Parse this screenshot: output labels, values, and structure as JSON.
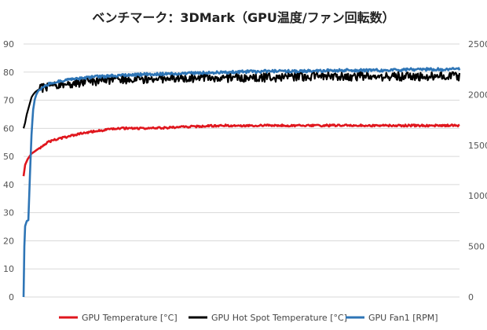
{
  "chart_data": {
    "type": "line",
    "title": "ベンチマーク：3DMark（GPU温度/ファン回転数）",
    "left_axis": {
      "ylim": [
        0,
        90
      ],
      "ticks": [
        "0",
        "10",
        "20",
        "30",
        "40",
        "50",
        "60",
        "70",
        "80",
        "90"
      ]
    },
    "right_axis": {
      "ylim": [
        0,
        2500
      ],
      "ticks": [
        "0",
        "500",
        "1000",
        "1500",
        "2000",
        "2500"
      ]
    },
    "grid": true,
    "legend_position": "bottom",
    "series": [
      {
        "name": "GPU Temperature [°C]",
        "axis": "left",
        "color": "#e0161d",
        "x": [
          0,
          2,
          5,
          10,
          20,
          30,
          40,
          55,
          70,
          90,
          120,
          160,
          200,
          250,
          300,
          350,
          400,
          450,
          500,
          548
        ],
        "y": [
          43,
          47,
          49,
          51,
          53,
          55,
          56,
          57,
          58,
          59,
          60,
          60,
          60.5,
          61,
          61,
          61,
          61,
          61,
          61,
          61
        ]
      },
      {
        "name": "GPU Hot Spot Temperature [°C]",
        "axis": "left",
        "color": "#000000",
        "x": [
          0,
          2,
          4,
          6,
          8,
          10,
          12,
          15,
          20,
          30,
          40,
          60,
          80,
          100,
          150,
          200,
          250,
          300,
          350,
          400,
          450,
          500,
          548
        ],
        "y": [
          60,
          62,
          65,
          67,
          69,
          71,
          72,
          73,
          74,
          75,
          75.5,
          76,
          76.5,
          77,
          77.5,
          78,
          78,
          78,
          78.5,
          78.5,
          78.5,
          78.5,
          78.5
        ]
      },
      {
        "name": "GPU Fan1 [RPM]",
        "axis": "right",
        "color": "#2e75b6",
        "x": [
          0,
          1,
          2,
          4,
          6,
          8,
          10,
          12,
          14,
          16,
          18,
          20,
          25,
          30,
          40,
          60,
          80,
          100,
          150,
          200,
          250,
          300,
          350,
          400,
          450,
          500,
          548
        ],
        "y": [
          0,
          500,
          700,
          750,
          760,
          1200,
          1600,
          1850,
          1950,
          2000,
          2030,
          2050,
          2080,
          2100,
          2120,
          2150,
          2170,
          2180,
          2200,
          2210,
          2220,
          2230,
          2230,
          2240,
          2240,
          2250,
          2250
        ]
      }
    ]
  }
}
